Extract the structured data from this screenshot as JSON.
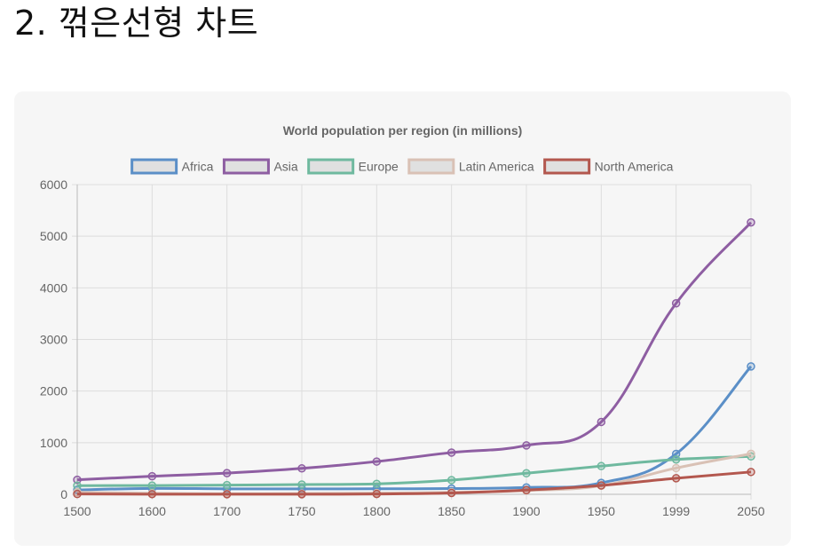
{
  "page": {
    "heading": "2. 꺾은선형 차트"
  },
  "chart_data": {
    "type": "line",
    "title": "World population per region (in millions)",
    "categories": [
      "1500",
      "1600",
      "1700",
      "1750",
      "1800",
      "1850",
      "1900",
      "1950",
      "1999",
      "2050"
    ],
    "ylim": [
      0,
      6000
    ],
    "yticks": [
      0,
      1000,
      2000,
      3000,
      4000,
      5000,
      6000
    ],
    "grid": true,
    "legend_position": "top",
    "curve": "smooth",
    "series": [
      {
        "name": "Africa",
        "color": "#5b8fc7",
        "values": [
          86,
          114,
          106,
          106,
          107,
          111,
          133,
          221,
          783,
          2478
        ]
      },
      {
        "name": "Asia",
        "color": "#8e5ea2",
        "values": [
          282,
          350,
          411,
          502,
          635,
          809,
          947,
          1402,
          3700,
          5267
        ]
      },
      {
        "name": "Europe",
        "color": "#6fb99f",
        "values": [
          168,
          170,
          178,
          190,
          203,
          276,
          408,
          547,
          675,
          734
        ]
      },
      {
        "name": "Latin America",
        "color": "#d9c1b5",
        "values": [
          40,
          20,
          10,
          16,
          24,
          38,
          74,
          167,
          508,
          784
        ]
      },
      {
        "name": "North America",
        "color": "#b3574e",
        "values": [
          6,
          3,
          2,
          2,
          7,
          26,
          82,
          172,
          312,
          433
        ]
      }
    ]
  }
}
